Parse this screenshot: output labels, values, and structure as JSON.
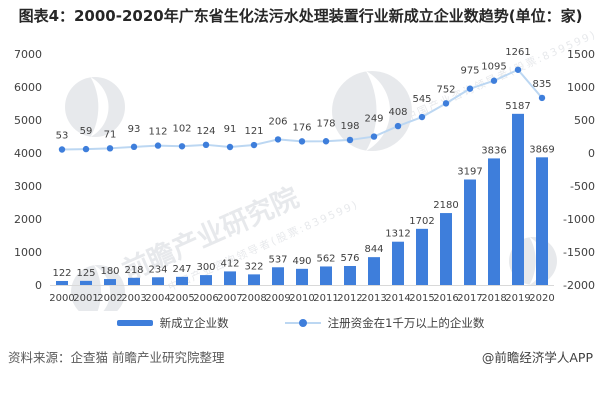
{
  "title": "图表4：2000-2020年广东省生化法污水处理装置行业新成立企业数趋势(单位：家)",
  "chart_data": {
    "type": "combo",
    "categories": [
      "2000",
      "2001",
      "2002",
      "2003",
      "2004",
      "2005",
      "2006",
      "2007",
      "2008",
      "2009",
      "2010",
      "2011",
      "2012",
      "2013",
      "2014",
      "2015",
      "2016",
      "2017",
      "2018",
      "2019",
      "2020"
    ],
    "series": [
      {
        "name": "新成立企业数",
        "type": "bar",
        "axis": "left",
        "color": "#3E7EDB",
        "values": [
          122,
          125,
          180,
          218,
          234,
          247,
          300,
          412,
          322,
          537,
          490,
          562,
          576,
          844,
          1312,
          1702,
          2180,
          3197,
          3836,
          5187,
          3869
        ]
      },
      {
        "name": "注册资金在1千万以上的企业数",
        "type": "line",
        "axis": "right",
        "color": "#BCD7F2",
        "marker_color": "#3E7EDB",
        "values": [
          53,
          59,
          71,
          93,
          112,
          102,
          124,
          91,
          121,
          206,
          176,
          178,
          198,
          249,
          408,
          545,
          752,
          975,
          1095,
          1261,
          835
        ]
      }
    ],
    "left_axis": {
      "min": 0,
      "max": 7000,
      "ticks": [
        0,
        1000,
        2000,
        3000,
        4000,
        5000,
        6000,
        7000
      ]
    },
    "right_axis": {
      "min": -2000,
      "max": 1500,
      "ticks": [
        -2000,
        -1500,
        -1000,
        -500,
        0,
        500,
        1000,
        1500
      ]
    },
    "grid": false,
    "legend_position": "bottom",
    "label_color": "#404040",
    "axis_label_color": "#404040",
    "baseline_color": "#D9D9D9"
  },
  "watermark": {
    "brand_text": "前瞻产业研究院",
    "sub_text": "中国产业咨询领导者(股票:839599)",
    "color": "#D4D7DC"
  },
  "footer": {
    "source": "资料来源：企查猫 前瞻产业研究院整理",
    "credit": "@前瞻经济学人APP"
  }
}
